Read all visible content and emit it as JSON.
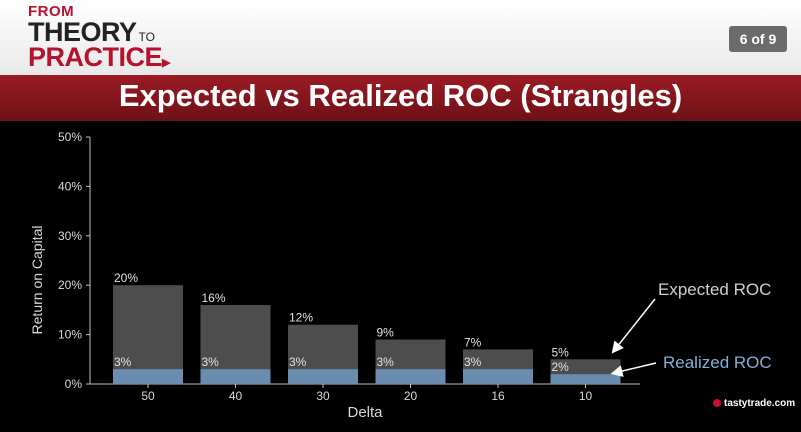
{
  "header": {
    "logo": {
      "from": "FROM",
      "theory": "THEORY",
      "to": "TO",
      "practice": "PRACTICE"
    },
    "page_indicator": "6 of 9"
  },
  "slide_title": "Expected vs Realized ROC (Strangles)",
  "chart_data": {
    "type": "bar",
    "xlabel": "Delta",
    "ylabel": "Return on Capital",
    "categories": [
      "50",
      "40",
      "30",
      "20",
      "16",
      "10"
    ],
    "ylim": [
      0,
      50
    ],
    "yticks": [
      "0%",
      "10%",
      "20%",
      "30%",
      "40%",
      "50%"
    ],
    "series": [
      {
        "name": "Expected ROC",
        "values": [
          20,
          16,
          12,
          9,
          7,
          5
        ],
        "labels": [
          "20%",
          "16%",
          "12%",
          "9%",
          "7%",
          "5%"
        ],
        "color": "#4d4d4d"
      },
      {
        "name": "Realized ROC",
        "values": [
          3,
          3,
          3,
          3,
          3,
          2
        ],
        "labels": [
          "3%",
          "3%",
          "3%",
          "3%",
          "3%",
          "2%"
        ],
        "color": "#6a8cae"
      }
    ],
    "grid": false,
    "legend": "right"
  },
  "footer": {
    "brand": "tastytrade.com"
  },
  "colors": {
    "brand_red": "#9b1b24",
    "expected_label": "#cfcfcf",
    "realized_label": "#7fb0d6"
  }
}
